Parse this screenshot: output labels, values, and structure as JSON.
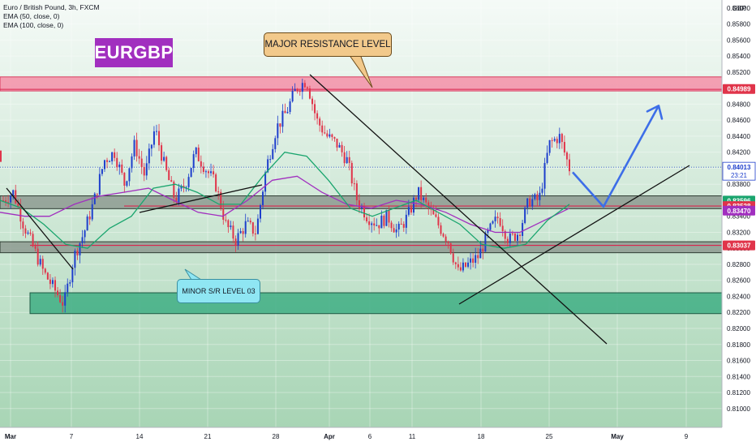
{
  "legend": {
    "symbol_line": "Euro / British Pound, 3h, FXCM",
    "ema50": "EMA (50, close, 0)",
    "ema100": "EMA (100, close, 0)"
  },
  "symbol_badge": "EURGBP",
  "currency": "GBP",
  "annotations": {
    "major": "MAJOR RESISTANCE LEVEL",
    "minor": "MINOR S/R LEVEL 03"
  },
  "price_labels": {
    "current": "0.84013",
    "countdown": "23:21",
    "resistance": "0.84989",
    "ema50": "0.83596",
    "support": "0.83528",
    "ema100": "0.83470",
    "level2": "0.83037"
  },
  "colors": {
    "background_top": "#f5faf7",
    "background_bottom": "#a8d5b5",
    "up_candle": "#1e3fcc",
    "down_candle": "#e0344a",
    "ema50": "#1aa56e",
    "ema100": "#a12fbf",
    "projection": "#3d6ee8",
    "resistance_zone": "#f48fa8",
    "support_zone": "#3fae84",
    "sr_zone": "#8d9a90",
    "badge": "#a12fbf"
  },
  "chart_data": {
    "type": "candlestick",
    "title": "Euro / British Pound, 3h, FXCM",
    "ylim": [
      0.80765,
      0.861
    ],
    "y_ticks": [
      0.81,
      0.812,
      0.814,
      0.816,
      0.818,
      0.82,
      0.822,
      0.824,
      0.826,
      0.828,
      0.83,
      0.832,
      0.834,
      0.836,
      0.838,
      0.84,
      0.842,
      0.844,
      0.846,
      0.848,
      0.85,
      0.852,
      0.854,
      0.856,
      0.858,
      0.86
    ],
    "x_tick_labels": [
      "Mar",
      "7",
      "14",
      "21",
      "28",
      "Apr",
      "6",
      "11",
      "18",
      "25",
      "May",
      "9"
    ],
    "close_path": [
      0.836,
      0.837,
      0.833,
      0.83,
      0.827,
      0.825,
      0.823,
      0.829,
      0.832,
      0.836,
      0.841,
      0.842,
      0.838,
      0.843,
      0.839,
      0.845,
      0.84,
      0.836,
      0.838,
      0.842,
      0.84,
      0.838,
      0.833,
      0.831,
      0.833,
      0.832,
      0.84,
      0.845,
      0.847,
      0.85,
      0.851,
      0.846,
      0.844,
      0.843,
      0.841,
      0.836,
      0.834,
      0.833,
      0.834,
      0.832,
      0.834,
      0.837,
      0.835,
      0.833,
      0.831,
      0.827,
      0.828,
      0.829,
      0.832,
      0.834,
      0.831,
      0.832,
      0.836,
      0.836,
      0.843,
      0.844,
      0.84
    ],
    "ema50_path": [
      0.836,
      0.835,
      0.833,
      0.8305,
      0.83,
      0.8325,
      0.834,
      0.8375,
      0.838,
      0.837,
      0.8355,
      0.8355,
      0.839,
      0.842,
      0.8415,
      0.8385,
      0.835,
      0.834,
      0.835,
      0.836,
      0.8345,
      0.833,
      0.8305,
      0.83,
      0.8305,
      0.8335,
      0.8355
    ],
    "ema100_path": [
      0.8345,
      0.834,
      0.834,
      0.8355,
      0.8365,
      0.837,
      0.8375,
      0.836,
      0.8345,
      0.834,
      0.836,
      0.8385,
      0.839,
      0.837,
      0.8355,
      0.835,
      0.836,
      0.8355,
      0.8345,
      0.833,
      0.832,
      0.832,
      0.8335,
      0.835
    ],
    "resistance_zone": [
      0.84965,
      0.8514
    ],
    "sr_zone_upper": [
      0.83495,
      0.83655
    ],
    "sr_zone_lower": [
      0.82945,
      0.83082
    ],
    "support_zone": [
      0.82185,
      0.82445
    ],
    "projection_path": [
      0.8395,
      0.8352,
      0.8478
    ],
    "grid": true
  }
}
